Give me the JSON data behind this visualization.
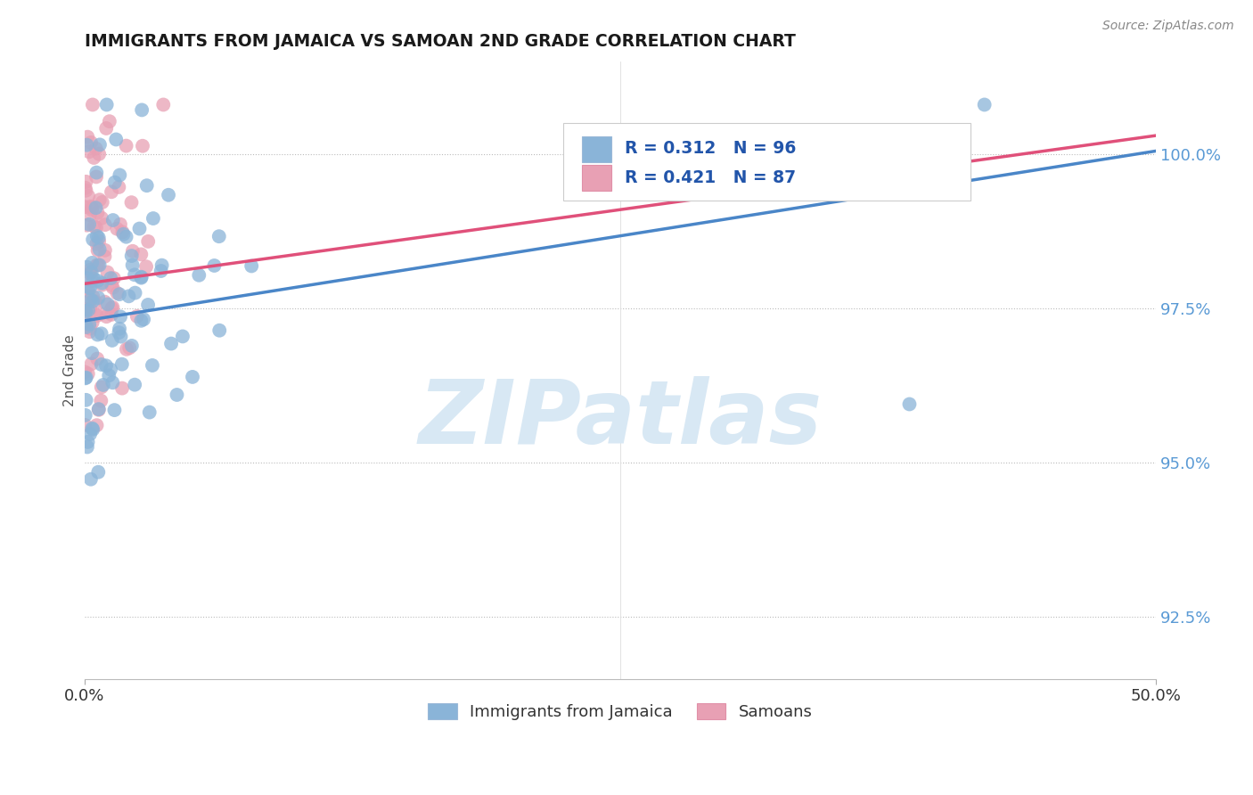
{
  "title": "IMMIGRANTS FROM JAMAICA VS SAMOAN 2ND GRADE CORRELATION CHART",
  "source_text": "Source: ZipAtlas.com",
  "ylabel": "2nd Grade",
  "xlim": [
    0.0,
    0.5
  ],
  "ylim": [
    91.5,
    101.5
  ],
  "ytick_vals": [
    92.5,
    95.0,
    97.5,
    100.0
  ],
  "ytick_labels": [
    "92.5%",
    "95.0%",
    "97.5%",
    "100.0%"
  ],
  "xtick_vals": [
    0.0,
    0.5
  ],
  "xtick_labels": [
    "0.0%",
    "50.0%"
  ],
  "R_blue": 0.312,
  "N_blue": 96,
  "R_pink": 0.421,
  "N_pink": 87,
  "blue_color": "#8ab4d8",
  "pink_color": "#e8a0b4",
  "blue_line_color": "#4a86c8",
  "pink_line_color": "#e0507a",
  "tick_color": "#5a9ad5",
  "legend_label_blue": "Immigrants from Jamaica",
  "legend_label_pink": "Samoans",
  "watermark": "ZIPatlas",
  "blue_line_x0": 0.0,
  "blue_line_y0": 97.3,
  "blue_line_x1": 0.5,
  "blue_line_y1": 100.05,
  "pink_line_x0": 0.0,
  "pink_line_y0": 97.9,
  "pink_line_x1": 0.5,
  "pink_line_y1": 100.3
}
